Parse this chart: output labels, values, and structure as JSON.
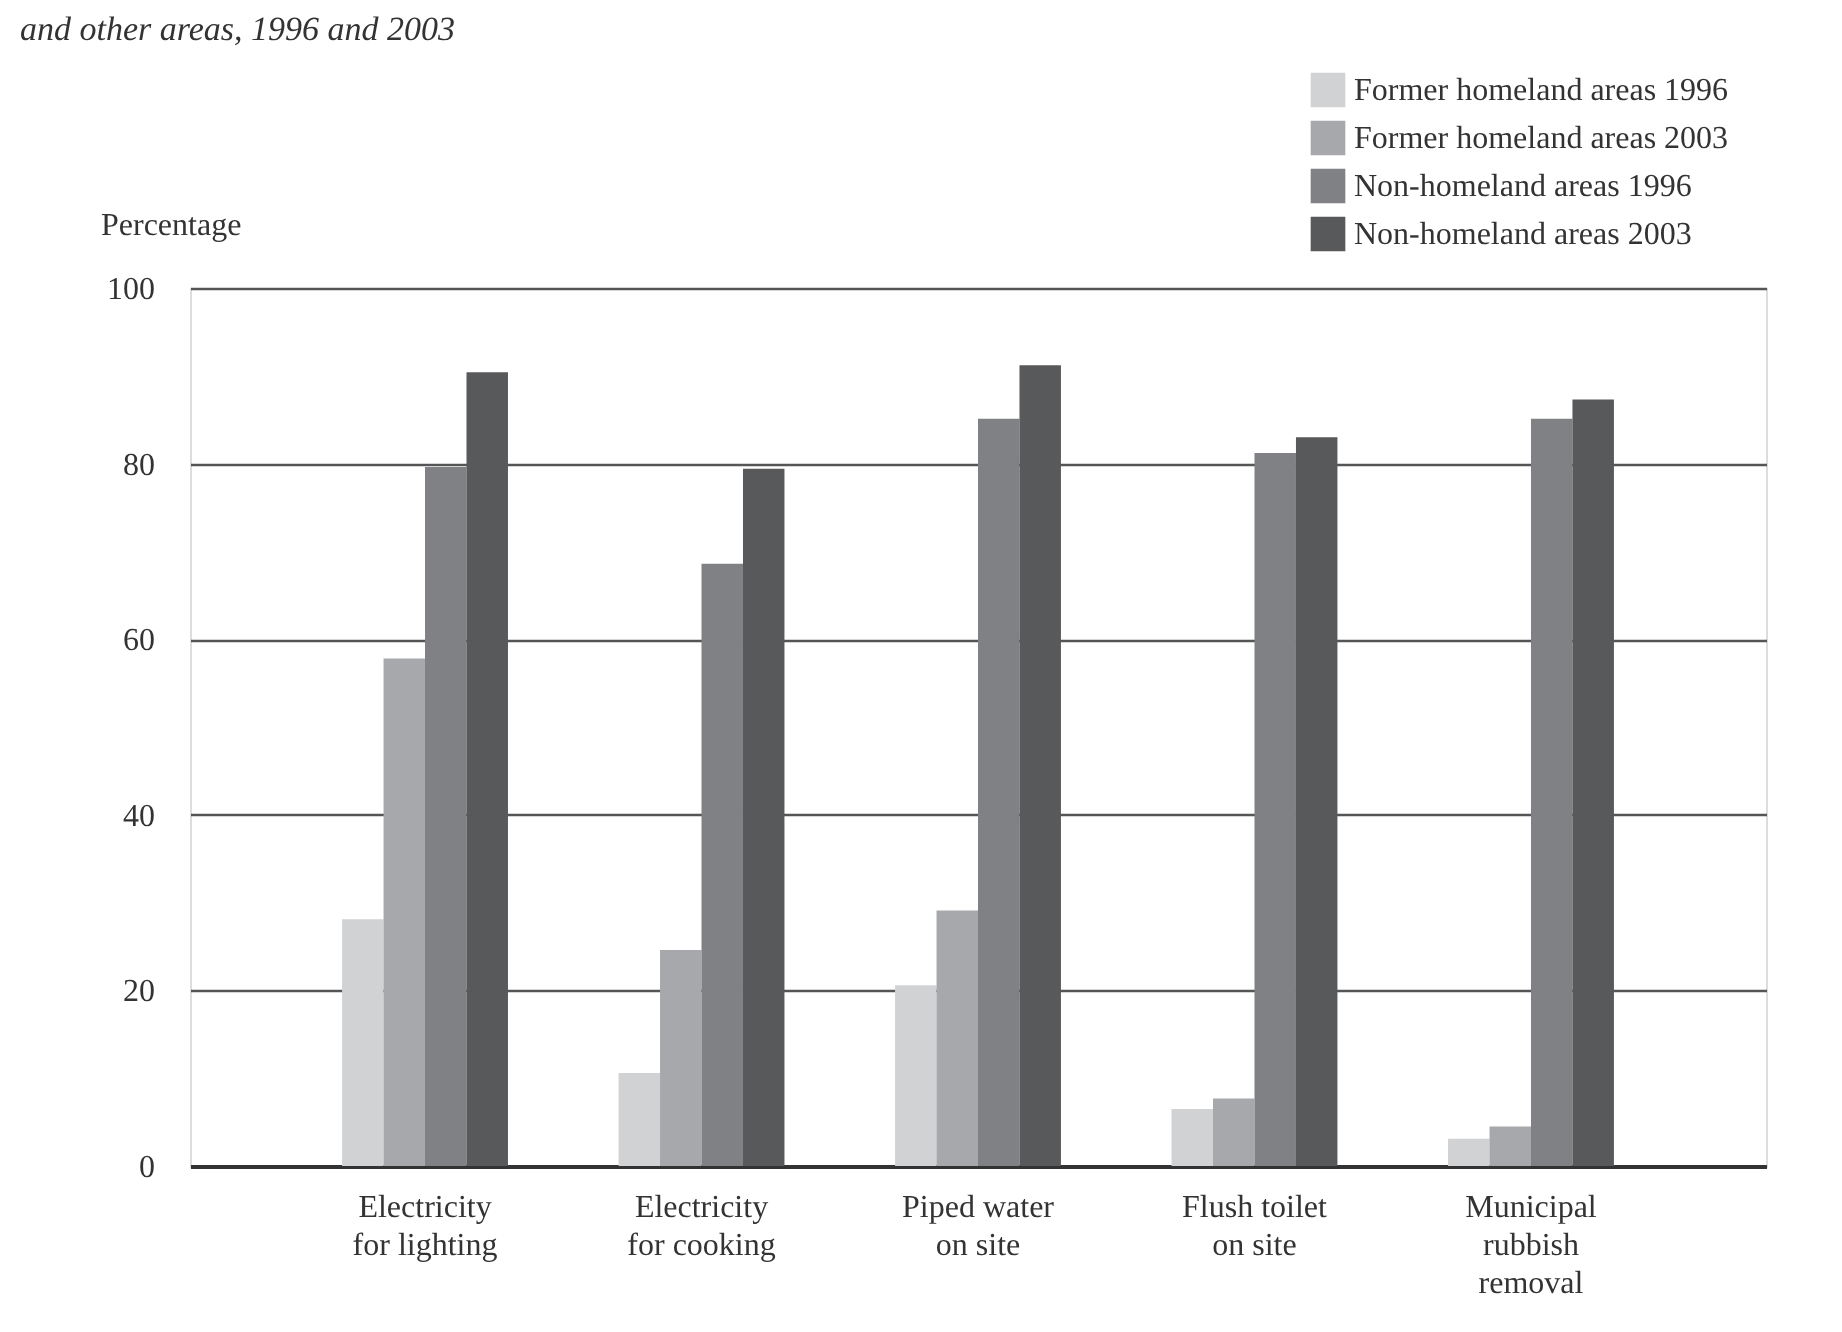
{
  "chart_data": {
    "type": "bar",
    "title": "and other areas, 1996 and 2003",
    "ylabel": "Percentage",
    "categories": [
      "Electricity for lighting",
      "Electricity for cooking",
      "Piped water on site",
      "Flush toilet on site",
      "Municipal rubbish removal"
    ],
    "series": [
      {
        "name": "Former homeland areas 1996",
        "color": "#d1d2d4",
        "values": [
          28.1,
          10.6,
          20.6,
          6.5,
          3.1
        ]
      },
      {
        "name": "Former homeland areas 2003",
        "color": "#a7a8ac",
        "values": [
          57.8,
          24.6,
          29.1,
          7.7,
          4.5
        ]
      },
      {
        "name": "Non-homeland areas 1996",
        "color": "#808185",
        "values": [
          79.6,
          68.6,
          85.1,
          81.2,
          85.1
        ]
      },
      {
        "name": "Non-homeland areas 2003",
        "color": "#58595b",
        "values": [
          90.4,
          79.4,
          91.2,
          83.0,
          87.3
        ]
      }
    ],
    "ylim": [
      0,
      100
    ],
    "yticks": [
      0,
      20,
      40,
      60,
      80,
      100
    ],
    "grid": "y",
    "legend": "top right"
  }
}
